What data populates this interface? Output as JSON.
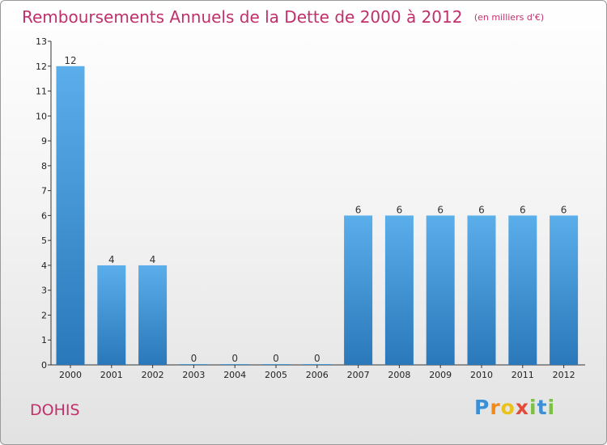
{
  "chart_data": {
    "type": "bar",
    "title": "Remboursements Annuels de la Dette de 2000 à 2012",
    "unit": "(en milliers d'€)",
    "categories": [
      "2000",
      "2001",
      "2002",
      "2003",
      "2004",
      "2005",
      "2006",
      "2007",
      "2008",
      "2009",
      "2010",
      "2011",
      "2012"
    ],
    "values": [
      12,
      4,
      4,
      0,
      0,
      0,
      0,
      6,
      6,
      6,
      6,
      6,
      6
    ],
    "ylim": [
      0,
      13
    ],
    "yticks": [
      0,
      1,
      2,
      3,
      4,
      5,
      6,
      7,
      8,
      9,
      10,
      11,
      12,
      13
    ],
    "grid": false,
    "bar_color_top": "#5aaeea",
    "bar_color_bottom": "#2a78ba"
  },
  "commune": "DOHIS",
  "logo": {
    "letters": [
      "P",
      "r",
      "o",
      "x",
      "i",
      "t",
      "i"
    ]
  }
}
